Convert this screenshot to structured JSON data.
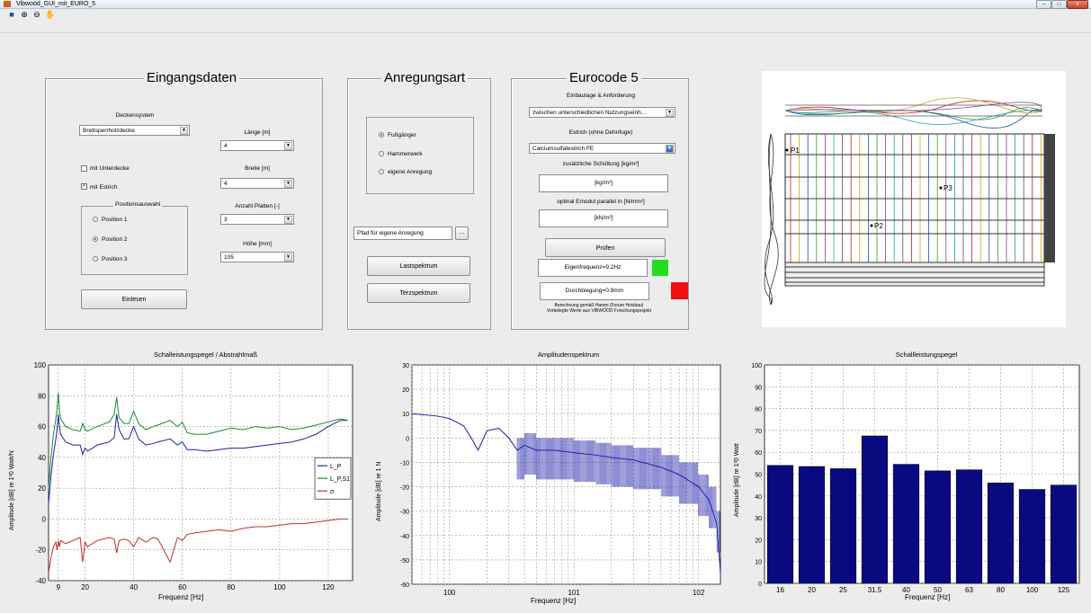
{
  "window": {
    "title": "Vibwood_GUI_mit_EURO_5"
  },
  "toolbar": {
    "icons": [
      "save-icon",
      "zoom-in-icon",
      "zoom-out-icon",
      "pan-hand-icon"
    ]
  },
  "eingang": {
    "title": "Eingangsdaten",
    "deckensystem_label": "Deckensystem",
    "deckensystem_value": "Brettsperrholzdecke",
    "unterdecke_label": "mit Unterdecke",
    "unterdecke_checked": false,
    "estrich_label": "mit Estrich",
    "estrich_checked": true,
    "positions_title": "Positionsauswahl",
    "positions": [
      {
        "label": "Position 1",
        "selected": false
      },
      {
        "label": "Position 2",
        "selected": true
      },
      {
        "label": "Position 3",
        "selected": false
      }
    ],
    "laenge_label": "Länge [m]",
    "laenge_value": "4",
    "breite_label": "Breite [m]",
    "breite_value": "4",
    "platten_label": "Anzahl Platten [-]",
    "platten_value": "3",
    "hoehe_label": "Höhe [mm]",
    "hoehe_value": "105",
    "einlesen_label": "Einlesen"
  },
  "anregung": {
    "title": "Anregungsart",
    "options": [
      {
        "label": "Fußgänger",
        "selected": true
      },
      {
        "label": "Hammerwerk",
        "selected": false
      },
      {
        "label": "eigene Anregung",
        "selected": false
      }
    ],
    "pfad_value": "Pfad für eigene Anregung",
    "browse_label": "...",
    "lastspektrum_label": "Lastspektrum",
    "terzspektrum_label": "Terzspektrum"
  },
  "eurocode": {
    "title": "Eurocode 5",
    "einbaulage_label": "Einbaulage & Anforderung",
    "einbaulage_value": "zwischen unterschiedlichen Nutzungseinh...",
    "estrich_label": "Estrich (ohne Dehnfuge)",
    "estrich_value": "Calciumsulfatestrich FE",
    "schuettung_label": "zusätzliche Schüttung [kg/m²]",
    "schuettung_value": "[kg/m²]",
    "emodul_label": "optinal Emodul parallel in [N/mm²]",
    "emodul_value": "[kN/m²]",
    "pruefen_label": "Prüfen",
    "eigenfrequenz_text": "Eigenfrequenz=9.2Hz",
    "eigenfrequenz_color": "#22dd22",
    "durchbiegung_text": "Durchbiegung=0.9mm",
    "durchbiegung_color": "#ee1111",
    "note_line1": "Berechnung gemäß Hamm (Forum Holzbau)",
    "note_line2": "Vorbelegte Werte aus VIBWOOD Forschungsprojekt"
  },
  "floorplan": {
    "points": [
      "P1",
      "P2",
      "P3"
    ]
  },
  "chart_data": [
    {
      "type": "line",
      "title": "Schalleistungspegel / Abstrahlmaß",
      "xlabel": "Frequenz [Hz]",
      "ylabel": "Amplitude [dB] re 1²0 Watt/N",
      "xlim": [
        5,
        130
      ],
      "ylim": [
        -40,
        100
      ],
      "xticks": [
        9,
        20,
        40,
        60,
        80,
        100,
        120
      ],
      "yticks": [
        -40,
        -20,
        0,
        20,
        40,
        60,
        80,
        100
      ],
      "grid": true,
      "legend_position": "center-right",
      "series": [
        {
          "name": "L_P",
          "color": "#1f1fa8",
          "x": [
            5,
            6,
            7,
            8,
            8.5,
            9,
            9.5,
            10,
            12,
            15,
            18,
            19,
            20,
            21,
            25,
            30,
            32,
            33,
            34,
            36,
            38,
            40,
            42,
            45,
            48,
            50,
            55,
            58,
            60,
            62,
            65,
            70,
            75,
            80,
            85,
            90,
            95,
            100,
            105,
            110,
            115,
            120,
            125,
            128
          ],
          "y": [
            10,
            28,
            42,
            52,
            58,
            68,
            60,
            55,
            50,
            48,
            48,
            42,
            46,
            44,
            48,
            50,
            53,
            68,
            58,
            52,
            52,
            60,
            52,
            48,
            49,
            50,
            52,
            48,
            50,
            45,
            45,
            44,
            45,
            46,
            46,
            47,
            48,
            49,
            50,
            52,
            55,
            60,
            64,
            64
          ]
        },
        {
          "name": "L_P,S1",
          "color": "#1a8c2a",
          "x": [
            5,
            6,
            7,
            8,
            8.5,
            9,
            9.5,
            10,
            12,
            15,
            18,
            19,
            20,
            21,
            25,
            30,
            32,
            33,
            34,
            36,
            38,
            40,
            42,
            45,
            48,
            50,
            55,
            58,
            60,
            62,
            65,
            70,
            75,
            80,
            85,
            90,
            95,
            100,
            105,
            110,
            115,
            120,
            125,
            128
          ],
          "y": [
            20,
            40,
            55,
            65,
            72,
            82,
            70,
            65,
            60,
            58,
            57,
            62,
            58,
            57,
            60,
            63,
            68,
            79,
            66,
            62,
            62,
            70,
            62,
            58,
            60,
            61,
            64,
            60,
            63,
            56,
            55,
            55,
            57,
            59,
            58,
            60,
            59,
            60,
            58,
            59,
            61,
            63,
            65,
            64
          ]
        },
        {
          "name": "σ",
          "color": "#c03030",
          "x": [
            5,
            6,
            7,
            8,
            8.5,
            9,
            9.5,
            10,
            12,
            15,
            18,
            19,
            20,
            21,
            25,
            30,
            32,
            33,
            34,
            36,
            38,
            40,
            42,
            45,
            48,
            50,
            55,
            58,
            60,
            62,
            65,
            70,
            75,
            80,
            85,
            90,
            95,
            100,
            105,
            110,
            115,
            120,
            125,
            128
          ],
          "y": [
            -35,
            -25,
            -18,
            -15,
            -20,
            -14,
            -18,
            -14,
            -16,
            -14,
            -12,
            -28,
            -15,
            -18,
            -14,
            -12,
            -13,
            -22,
            -14,
            -13,
            -14,
            -18,
            -12,
            -15,
            -12,
            -13,
            -28,
            -12,
            -14,
            -10,
            -9,
            -8,
            -7,
            -8,
            -6,
            -5,
            -5,
            -4,
            -3,
            -3,
            -2,
            -1,
            0,
            0
          ]
        }
      ]
    },
    {
      "type": "line",
      "title": "Amplitudenspektrum",
      "xlabel": "Frequenz [Hz]",
      "ylabel": "Amplitude [dB] re 1 N",
      "xscale": "log",
      "xlim": [
        0.5,
        150
      ],
      "ylim": [
        -60,
        30
      ],
      "xticks": [
        "10^0",
        "10^1",
        "10^2"
      ],
      "yticks": [
        -60,
        -50,
        -40,
        -30,
        -20,
        -10,
        0,
        10,
        20,
        30
      ],
      "grid": true,
      "series": [
        {
          "name": "",
          "color": "#1f1fa8",
          "x": [
            0.5,
            0.8,
            1.0,
            1.3,
            1.5,
            1.7,
            2,
            2.5,
            3,
            3.5,
            4,
            5,
            7,
            10,
            15,
            20,
            30,
            50,
            70,
            100,
            120,
            140,
            150
          ],
          "y": [
            10,
            9,
            8,
            5,
            0,
            -5,
            3,
            4,
            0,
            -5,
            -3,
            -5,
            -5,
            -6,
            -7,
            -8,
            -9,
            -12,
            -15,
            -20,
            -25,
            -35,
            -55
          ]
        }
      ]
    },
    {
      "type": "bar",
      "title": "Schallleistungspegel",
      "xlabel": "Frequenz [Hz]",
      "ylabel": "Amplitude [dB] re 1²0 Watt",
      "categories": [
        "16",
        "20",
        "25",
        "31.5",
        "40",
        "50",
        "63",
        "80",
        "100",
        "125"
      ],
      "values": [
        54,
        53.5,
        52.5,
        67.5,
        54.5,
        51.5,
        52,
        46,
        43,
        45
      ],
      "ylim": [
        0,
        100
      ],
      "yticks": [
        0,
        10,
        20,
        30,
        40,
        50,
        60,
        70,
        80,
        90,
        100
      ],
      "grid": true,
      "bar_color": "#0a0a80"
    }
  ]
}
